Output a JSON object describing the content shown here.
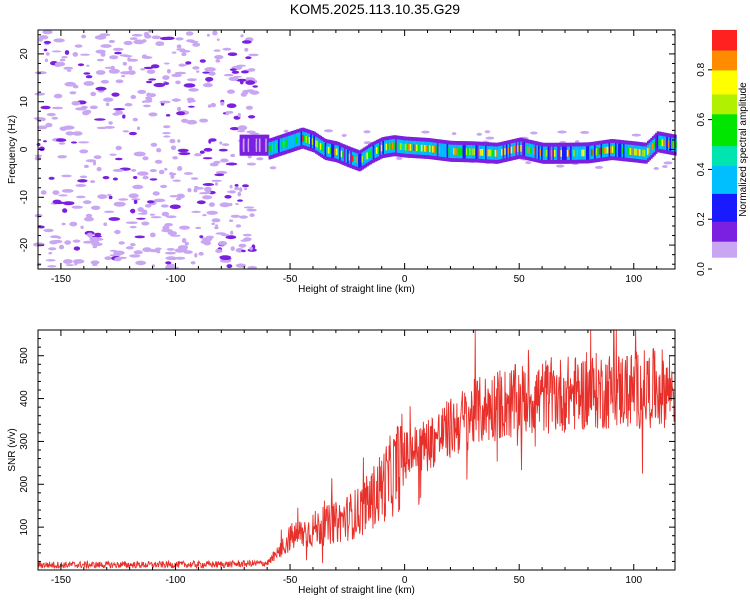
{
  "title": "KOM5.2025.113.10.35.G29",
  "colors": {
    "snr_line": "#e8302a",
    "axis": "#000000",
    "spec_low": "#c9a6f2",
    "spec_mid": "#7b1fe0"
  },
  "chart_data": [
    {
      "type": "heatmap",
      "name": "spectrogram",
      "xlabel": "Height of straight line (km)",
      "ylabel": "Frequency (Hz)",
      "xlim": [
        -160,
        118
      ],
      "ylim": [
        -25,
        25
      ],
      "xticks": [
        -150,
        -100,
        -50,
        0,
        50,
        100
      ],
      "yticks": [
        -20,
        -10,
        0,
        10,
        20
      ],
      "colorbar": {
        "label": "Normalized spectral amplitude",
        "range": [
          0.0,
          0.96
        ],
        "ticks": [
          "0.0",
          "0.2",
          "0.4",
          "0.6",
          "0.8"
        ],
        "colormap": "rainbow (white-violet-blue-cyan-green-yellow-red-magenta)"
      },
      "signal_track": {
        "x": [
          -60,
          -55,
          -50,
          -45,
          -40,
          -35,
          -30,
          -25,
          -20,
          -15,
          -10,
          -5,
          0,
          10,
          20,
          30,
          40,
          50,
          60,
          70,
          80,
          90,
          100,
          105,
          110,
          118
        ],
        "freq": [
          0,
          0.8,
          1.6,
          2.4,
          1.6,
          0,
          -0.5,
          -1.5,
          -2.4,
          -0.8,
          0.4,
          0.8,
          0.5,
          0.2,
          -0.4,
          -0.5,
          -0.8,
          0.3,
          -0.8,
          -0.8,
          -0.7,
          0,
          -0.5,
          -0.8,
          1.6,
          0.9
        ]
      }
    },
    {
      "type": "line",
      "name": "snr",
      "xlabel": "Height of straight line (km)",
      "ylabel": "SNR (v/v)",
      "xlim": [
        -160,
        118
      ],
      "ylim": [
        0,
        560
      ],
      "xticks": [
        -150,
        -100,
        -50,
        0,
        50,
        100
      ],
      "yticks": [
        100,
        200,
        300,
        400,
        500
      ],
      "trend": {
        "x": [
          -160,
          -120,
          -80,
          -60,
          -55,
          -50,
          -40,
          -30,
          -20,
          -15,
          -10,
          -5,
          0,
          10,
          20,
          30,
          40,
          50,
          60,
          70,
          80,
          90,
          100,
          110,
          118
        ],
        "y": [
          12,
          12,
          13,
          16,
          40,
          75,
          95,
          110,
          135,
          160,
          195,
          225,
          265,
          295,
          330,
          365,
          385,
          395,
          405,
          410,
          415,
          420,
          420,
          425,
          425
        ]
      }
    }
  ]
}
